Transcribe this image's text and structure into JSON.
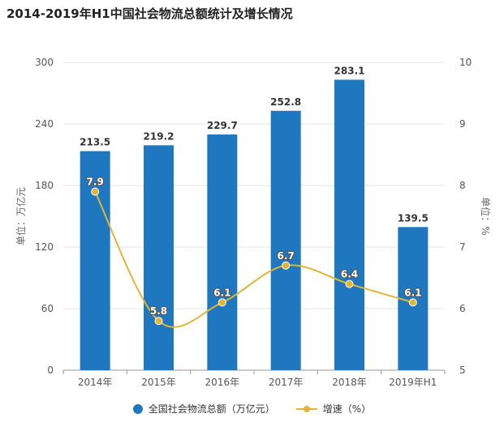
{
  "title": "2014-2019年H1中国社会物流总额统计及增长情况",
  "colors": {
    "bar": "#1f77c0",
    "line": "#e0b637",
    "grid": "#e3e3e3"
  },
  "chart_data": {
    "type": "bar",
    "categories": [
      "2014年",
      "2015年",
      "2016年",
      "2017年",
      "2018年",
      "2019年H1"
    ],
    "series": [
      {
        "name": "全国社会物流总额（万亿元）",
        "type": "bar",
        "axis": "left",
        "values": [
          213.5,
          219.2,
          229.7,
          252.8,
          283.1,
          139.5
        ],
        "labels": [
          "213.5",
          "219.2",
          "229.7",
          "252.8",
          "283.1",
          "139.5"
        ]
      },
      {
        "name": "增速（%）",
        "type": "line",
        "axis": "right",
        "smooth": true,
        "values": [
          7.9,
          5.8,
          6.1,
          6.7,
          6.4,
          6.1
        ],
        "labels": [
          "7.9",
          "5.8",
          "6.1",
          "6.7",
          "6.4",
          "6.1"
        ]
      }
    ],
    "y_left": {
      "label": "单位：万亿元",
      "min": 0,
      "max": 300,
      "ticks": [
        "0",
        "60",
        "120",
        "180",
        "240",
        "300"
      ]
    },
    "y_right": {
      "label": "单位：%",
      "min": 5,
      "max": 10,
      "ticks": [
        "5",
        "6",
        "7",
        "8",
        "9",
        "10"
      ]
    },
    "grid": true,
    "legend_position": "bottom"
  }
}
